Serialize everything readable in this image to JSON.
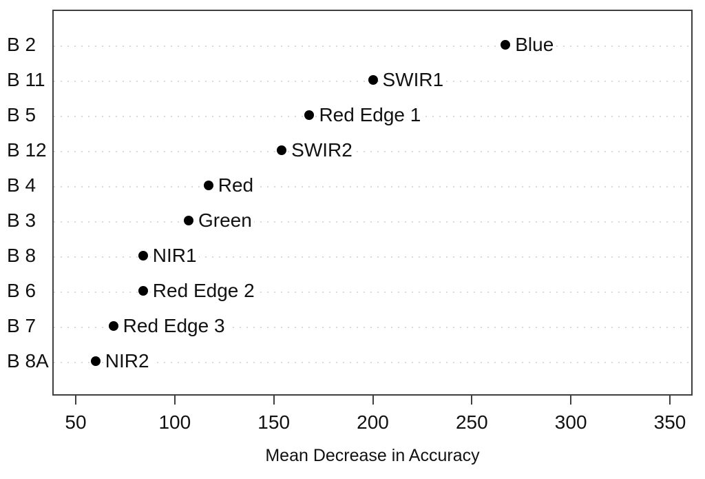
{
  "chart_data": {
    "type": "scatter",
    "variant": "dot-chart",
    "title": "",
    "xlabel": "Mean Decrease in Accuracy",
    "ylabel": "",
    "xlim": [
      38,
      362
    ],
    "x_ticks": [
      50,
      100,
      150,
      200,
      250,
      300,
      350
    ],
    "grid": "horizontal-dotted",
    "legend": null,
    "points": [
      {
        "band": "B 2",
        "label": "Blue",
        "value": 267
      },
      {
        "band": "B 11",
        "label": "SWIR1",
        "value": 200
      },
      {
        "band": "B 5",
        "label": "Red Edge 1",
        "value": 168
      },
      {
        "band": "B 12",
        "label": "SWIR2",
        "value": 154
      },
      {
        "band": "B 4",
        "label": "Red",
        "value": 117
      },
      {
        "band": "B 3",
        "label": "Green",
        "value": 107
      },
      {
        "band": "B 8",
        "label": "NIR1",
        "value": 84
      },
      {
        "band": "B 6",
        "label": "Red Edge 2",
        "value": 84
      },
      {
        "band": "B 7",
        "label": "Red Edge 3",
        "value": 69
      },
      {
        "band": "B 8A",
        "label": "NIR2",
        "value": 60
      }
    ],
    "colors": {
      "point": "#000000",
      "text": "#111111",
      "grid": "#d9d9d9",
      "box_border": "#3f3f3f",
      "background": "#ffffff"
    }
  }
}
